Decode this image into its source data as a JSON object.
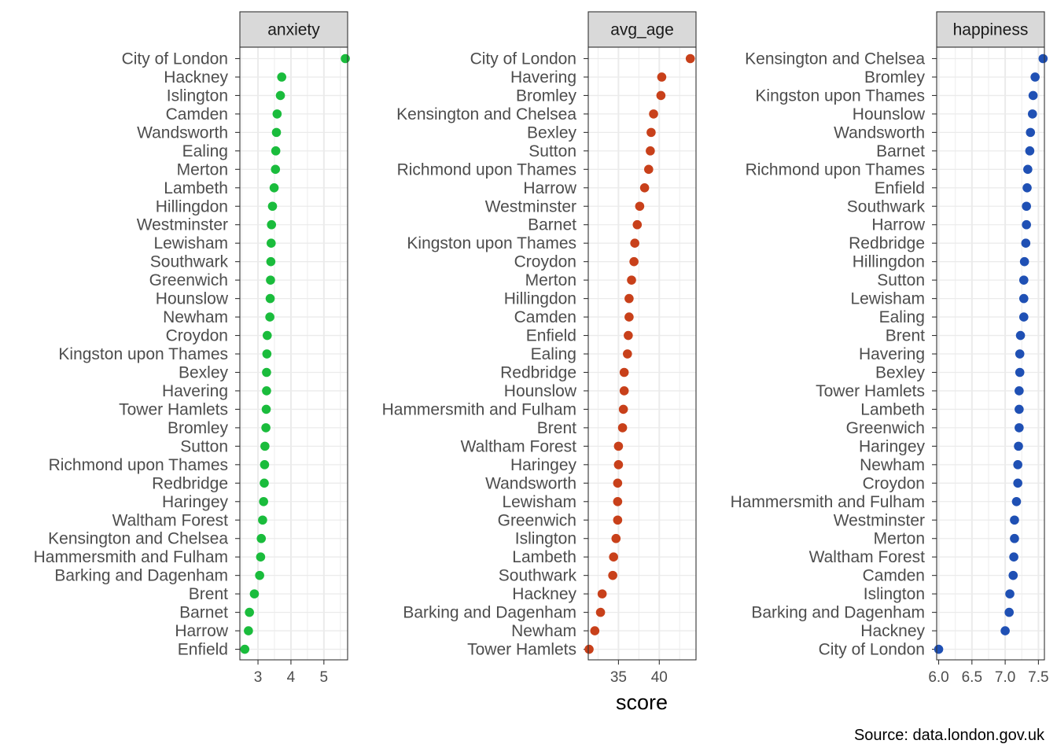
{
  "chart_data": {
    "type": "scatter",
    "x_axis_title": "score",
    "caption": "Source: data.london.gov.uk",
    "grid": true,
    "legend": "none",
    "facets": [
      {
        "name": "anxiety",
        "color": "#1ABC3C",
        "xlim": [
          2.45,
          5.72
        ],
        "ticks": [
          3,
          4,
          5
        ],
        "tick_labels": [
          "3",
          "4",
          "5"
        ],
        "points": [
          {
            "label": "City of London",
            "value": 5.65
          },
          {
            "label": "Hackney",
            "value": 3.72
          },
          {
            "label": "Islington",
            "value": 3.68
          },
          {
            "label": "Camden",
            "value": 3.58
          },
          {
            "label": "Wandsworth",
            "value": 3.56
          },
          {
            "label": "Ealing",
            "value": 3.54
          },
          {
            "label": "Merton",
            "value": 3.53
          },
          {
            "label": "Lambeth",
            "value": 3.49
          },
          {
            "label": "Hillingdon",
            "value": 3.44
          },
          {
            "label": "Westminster",
            "value": 3.41
          },
          {
            "label": "Lewisham",
            "value": 3.4
          },
          {
            "label": "Southwark",
            "value": 3.39
          },
          {
            "label": "Greenwich",
            "value": 3.38
          },
          {
            "label": "Hounslow",
            "value": 3.37
          },
          {
            "label": "Newham",
            "value": 3.36
          },
          {
            "label": "Croydon",
            "value": 3.28
          },
          {
            "label": "Kingston upon Thames",
            "value": 3.27
          },
          {
            "label": "Bexley",
            "value": 3.26
          },
          {
            "label": "Havering",
            "value": 3.26
          },
          {
            "label": "Tower Hamlets",
            "value": 3.25
          },
          {
            "label": "Bromley",
            "value": 3.24
          },
          {
            "label": "Sutton",
            "value": 3.21
          },
          {
            "label": "Richmond upon Thames",
            "value": 3.2
          },
          {
            "label": "Redbridge",
            "value": 3.19
          },
          {
            "label": "Haringey",
            "value": 3.17
          },
          {
            "label": "Waltham Forest",
            "value": 3.14
          },
          {
            "label": "Kensington and Chelsea",
            "value": 3.1
          },
          {
            "label": "Hammersmith and Fulham",
            "value": 3.08
          },
          {
            "label": "Barking and Dagenham",
            "value": 3.05
          },
          {
            "label": "Brent",
            "value": 2.89
          },
          {
            "label": "Barnet",
            "value": 2.74
          },
          {
            "label": "Harrow",
            "value": 2.71
          },
          {
            "label": "Enfield",
            "value": 2.6
          }
        ]
      },
      {
        "name": "avg_age",
        "color": "#C8401A",
        "xlim": [
          31.3,
          44.5
        ],
        "ticks": [
          35,
          40
        ],
        "tick_labels": [
          "35",
          "40"
        ],
        "points": [
          {
            "label": "City of London",
            "value": 43.8
          },
          {
            "label": "Havering",
            "value": 40.3
          },
          {
            "label": "Bromley",
            "value": 40.2
          },
          {
            "label": "Kensington and Chelsea",
            "value": 39.3
          },
          {
            "label": "Bexley",
            "value": 39.0
          },
          {
            "label": "Sutton",
            "value": 38.9
          },
          {
            "label": "Richmond upon Thames",
            "value": 38.7
          },
          {
            "label": "Harrow",
            "value": 38.2
          },
          {
            "label": "Westminster",
            "value": 37.6
          },
          {
            "label": "Barnet",
            "value": 37.3
          },
          {
            "label": "Kingston upon Thames",
            "value": 37.0
          },
          {
            "label": "Croydon",
            "value": 36.9
          },
          {
            "label": "Merton",
            "value": 36.6
          },
          {
            "label": "Hillingdon",
            "value": 36.3
          },
          {
            "label": "Camden",
            "value": 36.3
          },
          {
            "label": "Enfield",
            "value": 36.2
          },
          {
            "label": "Ealing",
            "value": 36.1
          },
          {
            "label": "Redbridge",
            "value": 35.7
          },
          {
            "label": "Hounslow",
            "value": 35.7
          },
          {
            "label": "Hammersmith and Fulham",
            "value": 35.6
          },
          {
            "label": "Brent",
            "value": 35.5
          },
          {
            "label": "Waltham Forest",
            "value": 35.0
          },
          {
            "label": "Haringey",
            "value": 35.0
          },
          {
            "label": "Wandsworth",
            "value": 34.9
          },
          {
            "label": "Lewisham",
            "value": 34.9
          },
          {
            "label": "Greenwich",
            "value": 34.9
          },
          {
            "label": "Islington",
            "value": 34.7
          },
          {
            "label": "Lambeth",
            "value": 34.4
          },
          {
            "label": "Southwark",
            "value": 34.3
          },
          {
            "label": "Hackney",
            "value": 33.0
          },
          {
            "label": "Barking and Dagenham",
            "value": 32.8
          },
          {
            "label": "Newham",
            "value": 32.1
          },
          {
            "label": "Tower Hamlets",
            "value": 31.4
          }
        ]
      },
      {
        "name": "happiness",
        "color": "#1F50B4",
        "xlim": [
          5.97,
          7.59
        ],
        "ticks": [
          6.0,
          6.5,
          7.0,
          7.5
        ],
        "tick_labels": [
          "6.0",
          "6.5",
          "7.0",
          "7.5"
        ],
        "points": [
          {
            "label": "Kensington and Chelsea",
            "value": 7.57
          },
          {
            "label": "Bromley",
            "value": 7.45
          },
          {
            "label": "Kingston upon Thames",
            "value": 7.42
          },
          {
            "label": "Hounslow",
            "value": 7.41
          },
          {
            "label": "Wandsworth",
            "value": 7.38
          },
          {
            "label": "Barnet",
            "value": 7.37
          },
          {
            "label": "Richmond upon Thames",
            "value": 7.34
          },
          {
            "label": "Enfield",
            "value": 7.33
          },
          {
            "label": "Southwark",
            "value": 7.32
          },
          {
            "label": "Harrow",
            "value": 7.32
          },
          {
            "label": "Redbridge",
            "value": 7.31
          },
          {
            "label": "Hillingdon",
            "value": 7.29
          },
          {
            "label": "Sutton",
            "value": 7.28
          },
          {
            "label": "Lewisham",
            "value": 7.28
          },
          {
            "label": "Ealing",
            "value": 7.28
          },
          {
            "label": "Brent",
            "value": 7.23
          },
          {
            "label": "Havering",
            "value": 7.22
          },
          {
            "label": "Bexley",
            "value": 7.22
          },
          {
            "label": "Tower Hamlets",
            "value": 7.21
          },
          {
            "label": "Lambeth",
            "value": 7.21
          },
          {
            "label": "Greenwich",
            "value": 7.21
          },
          {
            "label": "Haringey",
            "value": 7.2
          },
          {
            "label": "Newham",
            "value": 7.19
          },
          {
            "label": "Croydon",
            "value": 7.19
          },
          {
            "label": "Hammersmith and Fulham",
            "value": 7.17
          },
          {
            "label": "Westminster",
            "value": 7.14
          },
          {
            "label": "Merton",
            "value": 7.14
          },
          {
            "label": "Waltham Forest",
            "value": 7.13
          },
          {
            "label": "Camden",
            "value": 7.12
          },
          {
            "label": "Islington",
            "value": 7.07
          },
          {
            "label": "Barking and Dagenham",
            "value": 7.06
          },
          {
            "label": "Hackney",
            "value": 7.0
          },
          {
            "label": "City of London",
            "value": 6.0
          }
        ]
      }
    ]
  }
}
